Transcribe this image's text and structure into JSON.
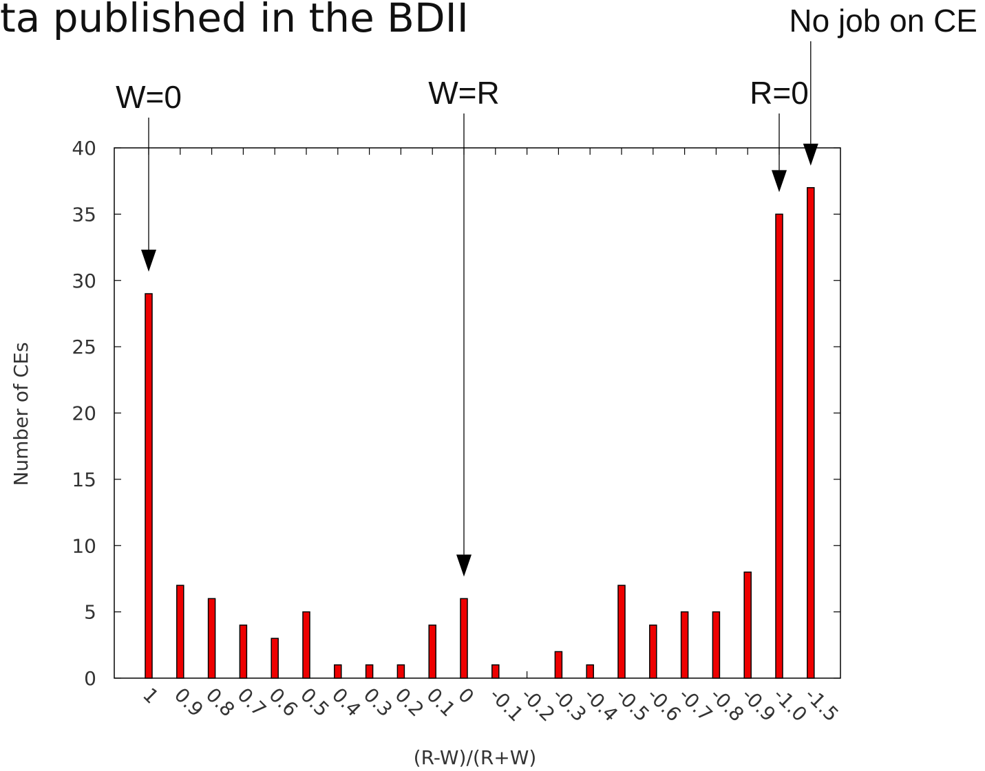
{
  "heading": "ta published in the BDII",
  "chart_data": {
    "type": "bar",
    "xlabel": "(R-W)/(R+W)",
    "ylabel": "Number of CEs",
    "ylim": [
      0,
      40
    ],
    "yticks": [
      "0",
      "5",
      "10",
      "15",
      "20",
      "25",
      "30",
      "35",
      "40"
    ],
    "categories": [
      "1",
      "0.9",
      "0.8",
      "0.7",
      "0.6",
      "0.5",
      "0.4",
      "0.3",
      "0.2",
      "0.1",
      "0",
      "-0.1",
      "-0.2",
      "-0.3",
      "-0.4",
      "-0.5",
      "-0.6",
      "-0.7",
      "-0.8",
      "-0.9",
      "-1.0",
      "-1.5"
    ],
    "values": [
      29,
      7,
      6,
      4,
      3,
      5,
      1,
      1,
      1,
      4,
      6,
      1,
      0,
      2,
      1,
      7,
      4,
      5,
      5,
      8,
      35,
      37
    ],
    "bar_color": "#ee0000",
    "grid": false,
    "annotations": [
      {
        "text": "W=0",
        "category": "1"
      },
      {
        "text": "W=R",
        "category": "0"
      },
      {
        "text": "R=0",
        "category": "-1.0"
      },
      {
        "text": "No job on CE",
        "category": "-1.5"
      }
    ]
  }
}
